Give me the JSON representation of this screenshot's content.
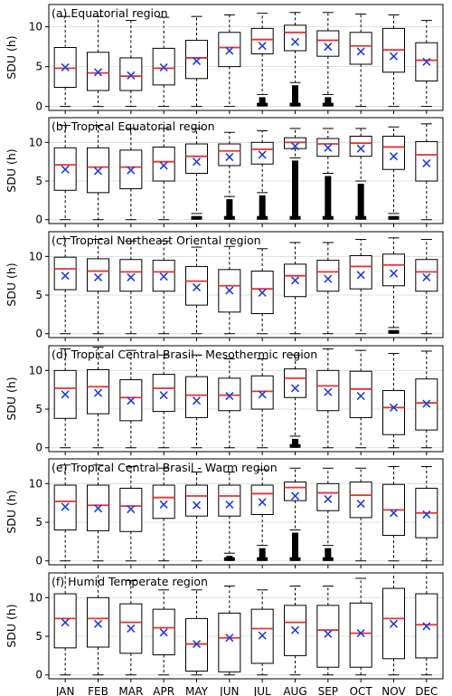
{
  "figure": {
    "ylabel": "SDU (h)",
    "months": [
      "JAN",
      "FEB",
      "MAR",
      "APR",
      "MAY",
      "JUN",
      "JUL",
      "AUG",
      "SEP",
      "OCT",
      "NOV",
      "DEC"
    ]
  },
  "colors": {
    "median": "#e8312f",
    "mean": "#1f3fd1",
    "box": "#000000",
    "grid": "#d9d9d9"
  },
  "chart_data": [
    {
      "type": "box",
      "title": "(a) Equatorial region",
      "ylabel": "SDU (h)",
      "ylim": [
        -0.5,
        12.8
      ],
      "yticks": [
        0,
        5,
        10
      ],
      "grid": true,
      "categories": [
        "JAN",
        "FEB",
        "MAR",
        "APR",
        "MAY",
        "JUN",
        "JUL",
        "AUG",
        "SEP",
        "OCT",
        "NOV",
        "DEC"
      ],
      "whisker_low": [
        0,
        0,
        0,
        0,
        0,
        0,
        1.5,
        3.0,
        1.5,
        0,
        0,
        0
      ],
      "q1": [
        2.4,
        2.0,
        2.0,
        2.7,
        3.5,
        5.0,
        6.6,
        7.0,
        6.3,
        5.3,
        4.3,
        3.2
      ],
      "median": [
        4.8,
        4.2,
        3.8,
        4.8,
        6.1,
        7.4,
        8.4,
        9.3,
        8.3,
        7.6,
        7.1,
        5.8
      ],
      "q3": [
        7.4,
        6.8,
        6.1,
        7.3,
        8.3,
        9.3,
        9.8,
        10.2,
        9.5,
        9.3,
        9.8,
        8.0
      ],
      "whisker_high": [
        11.3,
        11.3,
        10.8,
        11.2,
        11.3,
        11.5,
        11.7,
        11.8,
        11.8,
        11.6,
        11.5,
        10.8
      ],
      "mean": [
        4.9,
        4.3,
        3.9,
        4.9,
        5.7,
        7.0,
        7.6,
        8.1,
        7.5,
        6.9,
        6.3,
        5.6
      ],
      "outliers_low": [
        null,
        null,
        null,
        null,
        null,
        null,
        0,
        0,
        0,
        null,
        null,
        null
      ]
    },
    {
      "type": "box",
      "title": "(b) Tropical Equatorial region",
      "ylabel": "SDU (h)",
      "ylim": [
        -0.5,
        13.2
      ],
      "yticks": [
        0,
        5,
        10
      ],
      "grid": true,
      "categories": [
        "JAN",
        "FEB",
        "MAR",
        "APR",
        "MAY",
        "JUN",
        "JUL",
        "AUG",
        "SEP",
        "OCT",
        "NOV",
        "DEC"
      ],
      "whisker_low": [
        0,
        0,
        0,
        0,
        0.8,
        3.0,
        3.5,
        8.0,
        6.0,
        5.0,
        0.8,
        0
      ],
      "q1": [
        3.8,
        3.5,
        4.0,
        5.0,
        6.0,
        7.0,
        7.2,
        9.2,
        8.2,
        8.2,
        6.5,
        5.0
      ],
      "median": [
        7.1,
        6.8,
        6.8,
        7.5,
        8.2,
        8.9,
        9.1,
        10.0,
        9.8,
        9.9,
        9.4,
        8.4
      ],
      "q3": [
        9.3,
        9.3,
        9.0,
        9.4,
        9.8,
        9.8,
        10.0,
        10.6,
        10.5,
        10.8,
        10.8,
        10.1
      ],
      "whisker_high": [
        12.2,
        12.2,
        11.8,
        11.8,
        11.8,
        11.3,
        11.5,
        11.8,
        11.8,
        11.8,
        12.0,
        12.4
      ],
      "mean": [
        6.5,
        6.3,
        6.4,
        7.0,
        7.5,
        8.1,
        8.4,
        9.5,
        9.3,
        9.2,
        8.2,
        7.3
      ],
      "outliers_low": [
        null,
        null,
        null,
        null,
        0,
        0,
        0,
        0,
        0,
        0,
        0,
        null
      ]
    },
    {
      "type": "box",
      "title": "(c) Tropical Northeast Oriental region",
      "ylabel": "SDU (h)",
      "ylim": [
        -0.5,
        13.2
      ],
      "yticks": [
        0,
        5,
        10
      ],
      "grid": true,
      "categories": [
        "JAN",
        "FEB",
        "MAR",
        "APR",
        "MAY",
        "JUN",
        "JUL",
        "AUG",
        "SEP",
        "OCT",
        "NOV",
        "DEC"
      ],
      "whisker_low": [
        0,
        0,
        0,
        0,
        0,
        0,
        0,
        0,
        0,
        0,
        0.8,
        0
      ],
      "q1": [
        5.7,
        5.5,
        5.5,
        5.5,
        3.7,
        2.8,
        2.6,
        4.8,
        5.5,
        5.8,
        6.2,
        5.5
      ],
      "median": [
        8.4,
        8.1,
        8.0,
        8.0,
        6.8,
        6.2,
        5.8,
        7.5,
        8.0,
        8.7,
        8.9,
        8.0
      ],
      "q3": [
        9.9,
        9.7,
        9.6,
        9.5,
        8.7,
        8.3,
        8.1,
        9.0,
        9.5,
        10.1,
        10.3,
        9.6
      ],
      "whisker_high": [
        12.3,
        12.2,
        12.0,
        12.0,
        11.2,
        11.3,
        11.0,
        11.8,
        11.8,
        12.2,
        12.4,
        12.2
      ],
      "mean": [
        7.5,
        7.3,
        7.3,
        7.4,
        6.0,
        5.6,
        5.3,
        6.9,
        7.1,
        7.6,
        7.8,
        7.3
      ],
      "outliers_low": [
        null,
        null,
        null,
        null,
        null,
        null,
        null,
        null,
        null,
        null,
        0,
        null
      ]
    },
    {
      "type": "box",
      "title": "(d) Tropical Central Brasil - Mesothermic region",
      "ylabel": "SDU (h)",
      "ylim": [
        -0.5,
        13.2
      ],
      "yticks": [
        0,
        5,
        10
      ],
      "grid": true,
      "categories": [
        "JAN",
        "FEB",
        "MAR",
        "APR",
        "MAY",
        "JUN",
        "JUL",
        "AUG",
        "SEP",
        "OCT",
        "NOV",
        "DEC"
      ],
      "whisker_low": [
        0,
        0,
        0,
        0,
        0,
        0,
        0,
        1.5,
        0,
        0,
        0,
        0
      ],
      "q1": [
        3.8,
        4.4,
        3.5,
        4.7,
        3.9,
        4.8,
        5.0,
        6.5,
        4.8,
        3.9,
        1.7,
        2.3
      ],
      "median": [
        7.7,
        7.9,
        6.5,
        7.7,
        6.8,
        6.8,
        7.3,
        9.0,
        8.0,
        7.6,
        5.2,
        5.8
      ],
      "q3": [
        10.0,
        10.1,
        8.8,
        9.5,
        9.2,
        9.0,
        9.3,
        10.2,
        10.0,
        9.9,
        7.4,
        8.9
      ],
      "whisker_high": [
        12.8,
        13.0,
        12.6,
        12.0,
        12.0,
        11.5,
        11.5,
        12.0,
        12.8,
        12.6,
        12.2,
        12.5
      ],
      "mean": [
        6.9,
        7.1,
        6.1,
        6.8,
        6.1,
        6.7,
        6.9,
        7.7,
        7.2,
        6.7,
        5.2,
        5.7
      ],
      "outliers_low": [
        null,
        null,
        null,
        null,
        null,
        null,
        null,
        0,
        null,
        null,
        null,
        null
      ]
    },
    {
      "type": "box",
      "title": "(e) Tropical Central Brasil - Warm region",
      "ylabel": "SDU (h)",
      "ylim": [
        -0.5,
        13.2
      ],
      "yticks": [
        0,
        5,
        10
      ],
      "grid": true,
      "categories": [
        "JAN",
        "FEB",
        "MAR",
        "APR",
        "MAY",
        "JUN",
        "JUL",
        "AUG",
        "SEP",
        "OCT",
        "NOV",
        "DEC"
      ],
      "whisker_low": [
        0,
        0,
        0,
        0,
        0,
        1.0,
        2.0,
        4.0,
        2.0,
        0,
        0,
        0
      ],
      "q1": [
        4.0,
        3.9,
        3.8,
        5.5,
        5.8,
        5.8,
        6.0,
        7.8,
        6.5,
        5.6,
        3.3,
        3.0
      ],
      "median": [
        7.7,
        7.2,
        7.1,
        8.2,
        8.4,
        8.4,
        8.7,
        9.5,
        8.8,
        8.5,
        6.6,
        6.2
      ],
      "q3": [
        9.8,
        9.8,
        9.4,
        9.8,
        9.8,
        9.8,
        9.8,
        10.2,
        10.0,
        10.2,
        9.9,
        9.4
      ],
      "whisker_high": [
        12.4,
        12.4,
        12.2,
        12.0,
        11.5,
        11.5,
        11.8,
        12.0,
        12.0,
        12.0,
        12.2,
        12.2
      ],
      "mean": [
        7.0,
        6.8,
        6.7,
        7.3,
        7.2,
        7.3,
        7.6,
        8.4,
        8.0,
        7.4,
        6.2,
        6.0
      ],
      "outliers_low": [
        null,
        null,
        null,
        null,
        null,
        0,
        0,
        0,
        0,
        null,
        null,
        null
      ]
    },
    {
      "type": "box",
      "title": "(f) Humid Temperate region",
      "ylabel": "SDU (h)",
      "ylim": [
        -0.5,
        13.2
      ],
      "yticks": [
        0,
        5,
        10
      ],
      "grid": true,
      "categories": [
        "JAN",
        "FEB",
        "MAR",
        "APR",
        "MAY",
        "JUN",
        "JUL",
        "AUG",
        "SEP",
        "OCT",
        "NOV",
        "DEC"
      ],
      "whisker_low": [
        0,
        0,
        0,
        0,
        0,
        0,
        0,
        0,
        0,
        0,
        0,
        0
      ],
      "q1": [
        3.5,
        3.6,
        2.8,
        2.6,
        0.5,
        0.4,
        1.5,
        2.5,
        1.0,
        1.0,
        2.1,
        2.2
      ],
      "median": [
        7.3,
        7.3,
        6.8,
        6.1,
        4.0,
        4.8,
        6.0,
        6.8,
        5.8,
        5.4,
        7.3,
        6.5
      ],
      "q3": [
        10.5,
        10.0,
        9.2,
        8.5,
        7.3,
        8.0,
        8.5,
        9.0,
        9.0,
        9.3,
        11.2,
        10.5
      ],
      "whisker_high": [
        13.2,
        13.2,
        12.2,
        11.0,
        11.0,
        11.5,
        11.0,
        11.5,
        11.5,
        12.5,
        13.2,
        13.2
      ],
      "mean": [
        6.8,
        6.6,
        6.0,
        5.5,
        4.0,
        4.8,
        5.1,
        5.8,
        5.3,
        5.4,
        6.6,
        6.3
      ],
      "outliers_low": [
        null,
        null,
        null,
        null,
        null,
        null,
        null,
        null,
        null,
        null,
        null,
        null
      ]
    }
  ]
}
